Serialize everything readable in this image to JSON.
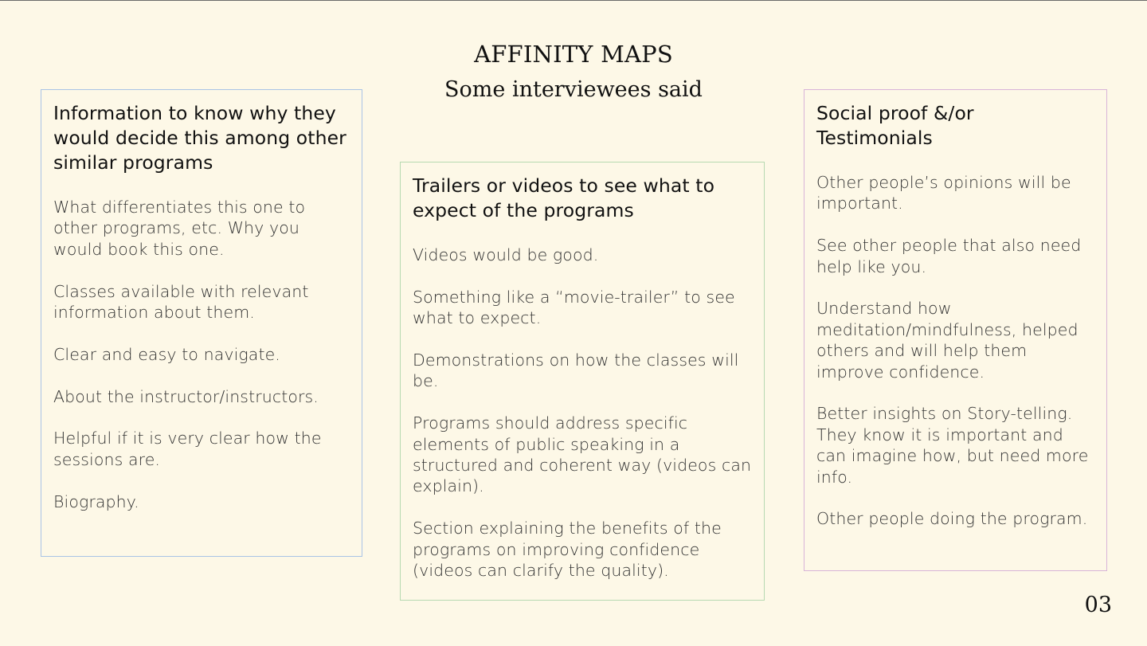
{
  "slide": {
    "title": "AFFINITY MAPS",
    "subtitle": "Some interviewees said",
    "page_number": "03"
  },
  "colors": {
    "background": "#fdf8e7",
    "left_border": "#a9c4e6",
    "middle_border": "#b7d9b1",
    "right_border": "#d8b4d8"
  },
  "cards": {
    "left": {
      "heading": "Information to know why they would decide this among other similar programs",
      "items": [
        "What differentiates this one to other programs, etc. Why you would book this one.",
        "Classes available with relevant information about them.",
        "Clear and easy to navigate.",
        "About the instructor/instructors.",
        "Helpful if it is very clear how the sessions are.",
        "Biography."
      ]
    },
    "middle": {
      "heading": "Trailers or videos to see what to expect of the programs",
      "items": [
        "Videos would be good.",
        "Something like a “movie-trailer” to see what to expect.",
        "Demonstrations on how the classes will be.",
        "Programs should address specific elements of public speaking in a structured and coherent way (videos can explain).",
        "Section explaining the benefits of the programs on improving confidence (videos can clarify the quality)."
      ]
    },
    "right": {
      "heading": "Social proof &/or Testimonials",
      "items": [
        "Other people’s opinions will be important.",
        "See other people that also need help like you.",
        "Understand how meditation/mindfulness, helped others and will help them improve confidence.",
        "Better insights on Story-telling. They know it is important and can imagine how, but need more info.",
        "Other people doing the program."
      ]
    }
  }
}
